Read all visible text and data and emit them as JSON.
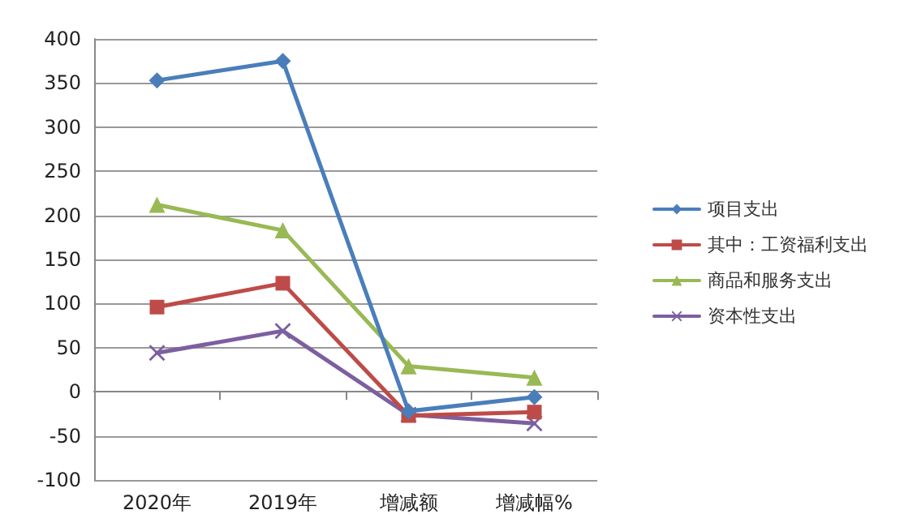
{
  "chart_data": {
    "type": "line",
    "categories": [
      "2020年",
      "2019年",
      "增减额",
      "增减幅%"
    ],
    "series": [
      {
        "name": "项目支出",
        "color": "#4a7ebb",
        "marker": "diamond",
        "values": [
          353,
          375,
          -22,
          -6
        ]
      },
      {
        "name": "其中：工资福利支出",
        "color": "#be4b48",
        "marker": "square",
        "values": [
          96,
          123,
          -27,
          -23
        ]
      },
      {
        "name": "商品和服务支出",
        "color": "#98b954",
        "marker": "triangle",
        "values": [
          212,
          183,
          29,
          16
        ]
      },
      {
        "name": "资本性支出",
        "color": "#7d5fa0",
        "marker": "cross",
        "values": [
          44,
          69,
          -26,
          -36
        ]
      }
    ],
    "ylim": [
      -100,
      400
    ],
    "yticks": [
      -100,
      -50,
      0,
      50,
      100,
      150,
      200,
      250,
      300,
      350,
      400
    ],
    "grid": "y",
    "legend": "right",
    "line_style": "solid"
  }
}
